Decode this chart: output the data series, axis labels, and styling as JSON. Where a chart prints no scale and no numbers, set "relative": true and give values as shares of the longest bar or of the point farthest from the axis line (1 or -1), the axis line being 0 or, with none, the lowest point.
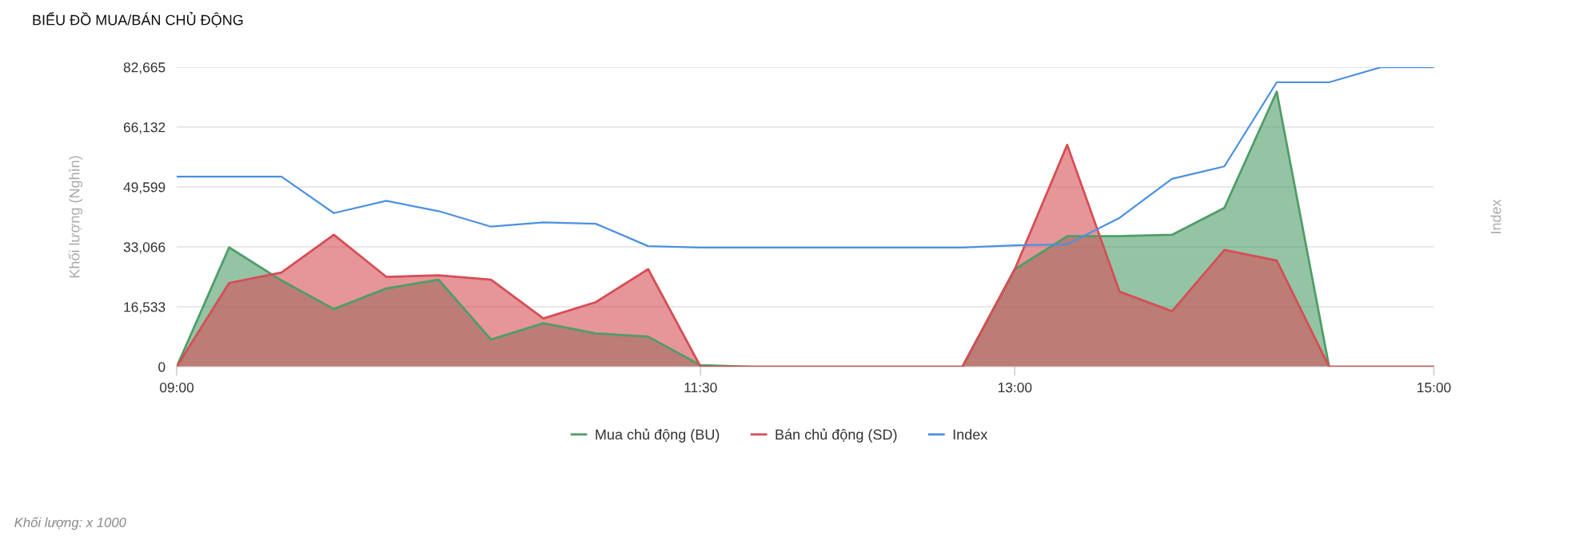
{
  "chart_data": [
    {
      "type": "area",
      "title": "BIỂU ĐỒ MUA/BÁN CHỦ ĐỘNG",
      "ylabel": "Khối lượng (Nghìn)",
      "x": [
        9,
        9.25,
        9.5,
        9.75,
        10,
        10.25,
        10.5,
        10.75,
        11,
        11.25,
        11.5,
        11.75,
        12,
        12.25,
        12.5,
        12.75,
        13,
        13.25,
        13.5,
        13.75,
        14,
        14.25,
        14.5,
        14.75,
        15
      ],
      "xlim": [
        9,
        15
      ],
      "xticks": [
        {
          "value": 9,
          "label": "09:00"
        },
        {
          "value": 11.5,
          "label": "11:30"
        },
        {
          "value": 13,
          "label": "13:00"
        },
        {
          "value": 15,
          "label": "15:00"
        }
      ],
      "ylim": [
        0,
        82665
      ],
      "yticks": [
        0,
        {
          "value": 16533,
          "label": "16,533"
        },
        {
          "value": 33066,
          "label": "33,066"
        },
        {
          "value": 49599,
          "label": "49,599"
        },
        {
          "value": 66132,
          "label": "66,132"
        },
        {
          "value": 82665,
          "label": "82,665"
        }
      ],
      "grid": "y",
      "legend": "bottom",
      "series": [
        {
          "name": "Mua chủ động (BU)",
          "color": "#4f9d69",
          "values": [
            0,
            32900,
            23800,
            15900,
            21600,
            24000,
            7500,
            12000,
            9200,
            8300,
            400,
            0,
            0,
            0,
            0,
            0,
            26900,
            36000,
            36000,
            36400,
            43800,
            75900,
            0,
            0,
            0
          ]
        },
        {
          "name": "Bán chủ động (SD)",
          "color": "#d64e55",
          "values": [
            0,
            23100,
            26000,
            36400,
            24800,
            25200,
            24000,
            13300,
            17800,
            26900,
            0,
            0,
            0,
            0,
            0,
            0,
            26900,
            61200,
            20700,
            15300,
            32200,
            29300,
            0,
            0,
            0
          ]
        }
      ],
      "annotations": [
        "Khối lượng: x 1000"
      ]
    },
    {
      "type": "line",
      "relative": true,
      "ylabel": "Index",
      "legend": "bottom",
      "x": [
        9,
        9.25,
        9.5,
        9.75,
        10,
        10.25,
        10.5,
        10.75,
        11,
        11.25,
        11.5,
        11.75,
        12,
        12.25,
        12.5,
        12.75,
        13,
        13.25,
        13.5,
        13.75,
        14,
        14.25,
        14.5,
        14.75,
        15
      ],
      "xlim": [
        9,
        15
      ],
      "series": [
        {
          "name": "Index",
          "color": "#4a90e2",
          "values": [
            0.393,
            0.393,
            0.393,
            0.191,
            0.259,
            0.202,
            0.116,
            0.14,
            0.132,
            0.008,
            0,
            0,
            0,
            0,
            0,
            0,
            0.012,
            0.018,
            0.165,
            0.381,
            0.45,
            0.916,
            0.916,
            1,
            1
          ]
        }
      ]
    }
  ]
}
